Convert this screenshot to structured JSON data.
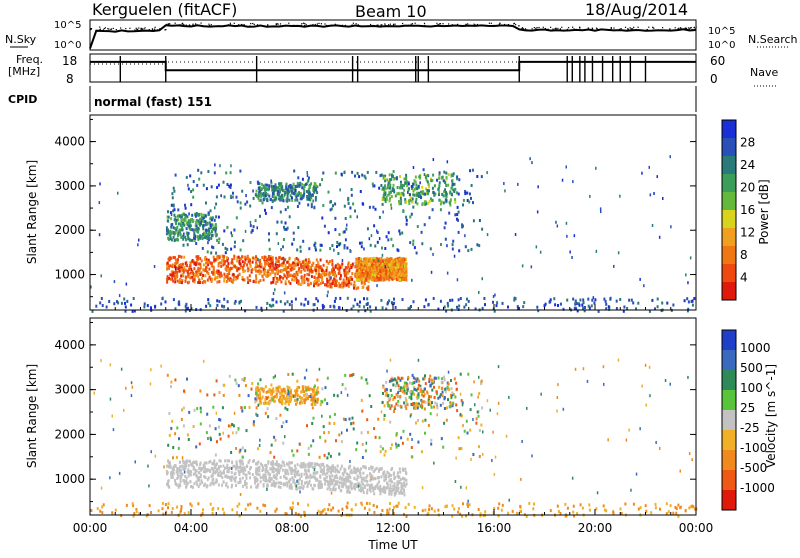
{
  "header": {
    "station": "Kerguelen (fitACF)",
    "beam": "Beam 10",
    "date": "18/Aug/2014"
  },
  "sky_panel": {
    "left_label": "N.Sky",
    "right_label": "N.Search",
    "ticks_left": [
      "10^5",
      "10^0"
    ],
    "ticks_right": [
      "10^5",
      "10^0"
    ]
  },
  "freq_panel": {
    "left_label_line1": "Freq.",
    "left_label_line2": "[MHz]",
    "right_label": "Nave",
    "ticks_left": [
      "18",
      "8"
    ],
    "ticks_right": [
      "60",
      "0"
    ],
    "freq_steps": [
      {
        "from_h": 0.0,
        "to_h": 3.0,
        "level": 0.72
      },
      {
        "from_h": 3.0,
        "to_h": 17.0,
        "level": 0.42
      },
      {
        "from_h": 17.0,
        "to_h": 24.0,
        "level": 0.72
      }
    ]
  },
  "cpid": {
    "label": "CPID",
    "value": "normal (fast) 151"
  },
  "colors": {
    "missing_gray": "#c0c0c0",
    "axis": "#000000"
  },
  "chart_data": [
    {
      "type": "heatmap",
      "title": "",
      "xlabel": "Time UT",
      "ylabel": "Slant Range [km]",
      "x_ticks": [
        "00:00",
        "04:00",
        "08:00",
        "12:00",
        "16:00",
        "20:00",
        "00:00"
      ],
      "x_range_hours": [
        0,
        24
      ],
      "y_ticks": [
        1000,
        2000,
        3000,
        4000
      ],
      "ylim": [
        200,
        4600
      ],
      "colorbar": {
        "label": "Power [dB]",
        "ticks": [
          "4",
          "8",
          "12",
          "16",
          "20",
          "24",
          "28"
        ],
        "colors": [
          "#1a2fd6",
          "#2850b8",
          "#2a7a7a",
          "#3c9e5a",
          "#64b83c",
          "#d8d41e",
          "#f0a01e",
          "#f07814",
          "#ee4a10",
          "#e01a0a"
        ]
      },
      "features": [
        {
          "name": "band",
          "t": [
            3.0,
            11.0
          ],
          "r": [
            850,
            1450
          ],
          "level": [
            6,
            9
          ]
        },
        {
          "name": "band_tail",
          "t": [
            10.5,
            12.5
          ],
          "r": [
            900,
            1400
          ],
          "level": [
            5,
            8
          ]
        },
        {
          "name": "patch1",
          "t": [
            11.5,
            14.5
          ],
          "r": [
            2600,
            3300
          ],
          "level": [
            2,
            5
          ]
        },
        {
          "name": "patch2",
          "t": [
            6.5,
            9.0
          ],
          "r": [
            2700,
            3100
          ],
          "level": [
            1,
            4
          ]
        },
        {
          "name": "patch3",
          "t": [
            3.0,
            5.0
          ],
          "r": [
            1800,
            2400
          ],
          "level": [
            1,
            4
          ]
        },
        {
          "name": "scatter",
          "t": [
            3.0,
            15.5
          ],
          "r": [
            1500,
            3400
          ],
          "level": [
            0,
            3
          ]
        },
        {
          "name": "ground",
          "t": [
            0.0,
            24.0
          ],
          "r": [
            200,
            500
          ],
          "level": [
            0,
            2
          ]
        }
      ]
    },
    {
      "type": "heatmap",
      "title": "",
      "xlabel": "Time UT",
      "ylabel": "Slant Range [km]",
      "x_ticks": [
        "00:00",
        "04:00",
        "08:00",
        "12:00",
        "16:00",
        "20:00",
        "00:00"
      ],
      "x_range_hours": [
        0,
        24
      ],
      "y_ticks": [
        1000,
        2000,
        3000,
        4000
      ],
      "ylim": [
        200,
        4600
      ],
      "colorbar": {
        "label": "Velocity [m s^-1]",
        "ticks": [
          "1000",
          "500",
          "100",
          "25",
          "-25",
          "-100",
          "-500",
          "-1000"
        ],
        "colors": [
          "#1f3fc8",
          "#3a6abf",
          "#2f8a5a",
          "#58c43a",
          "#c2c2c2",
          "#f0b028",
          "#f08a1e",
          "#ee5a14",
          "#e01a0a"
        ]
      },
      "features": [
        {
          "name": "band_ground",
          "t": [
            3.0,
            12.5
          ],
          "r": [
            850,
            1450
          ],
          "class": "gray"
        },
        {
          "name": "patch1",
          "t": [
            11.5,
            14.5
          ],
          "r": [
            2600,
            3300
          ],
          "class": "mixed"
        },
        {
          "name": "patch2",
          "t": [
            6.5,
            9.0
          ],
          "r": [
            2700,
            3100
          ],
          "class": "orange"
        },
        {
          "name": "scatter",
          "t": [
            3.0,
            15.5
          ],
          "r": [
            1500,
            3400
          ],
          "class": "mixed"
        },
        {
          "name": "ground",
          "t": [
            0.0,
            24.0
          ],
          "r": [
            200,
            500
          ],
          "class": "orange"
        }
      ]
    }
  ]
}
